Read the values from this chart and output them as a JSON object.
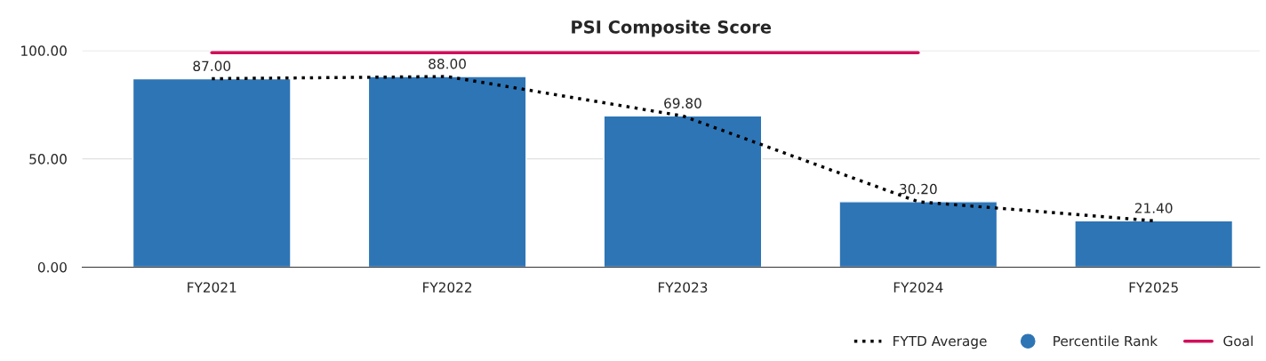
{
  "chart_data": {
    "type": "bar",
    "title": "PSI Composite Score",
    "categories": [
      "FY2021",
      "FY2022",
      "FY2023",
      "FY2024",
      "FY2025"
    ],
    "series": [
      {
        "name": "FYTD Average",
        "type": "line",
        "color": "#000000",
        "line_style": "dotted",
        "values": [
          87.0,
          88.0,
          69.8,
          30.2,
          21.4
        ]
      },
      {
        "name": "Percentile Rank",
        "color": "#2e75b6",
        "values": [
          87.0,
          88.0,
          69.8,
          30.2,
          21.4
        ],
        "value_labels": [
          "87.00",
          "88.00",
          "69.80",
          "30.20",
          "21.40"
        ]
      },
      {
        "name": "Goal",
        "type": "line",
        "color": "#d0105a",
        "line_style": "solid",
        "values": [
          99,
          99,
          99,
          99,
          null
        ]
      }
    ],
    "ylim": [
      0,
      100
    ],
    "yticks": [
      {
        "value": 0,
        "label": "0.00"
      },
      {
        "value": 50,
        "label": "50.00"
      },
      {
        "value": 100,
        "label": "100.00"
      }
    ],
    "grid": "y",
    "legend": "bottom right"
  }
}
